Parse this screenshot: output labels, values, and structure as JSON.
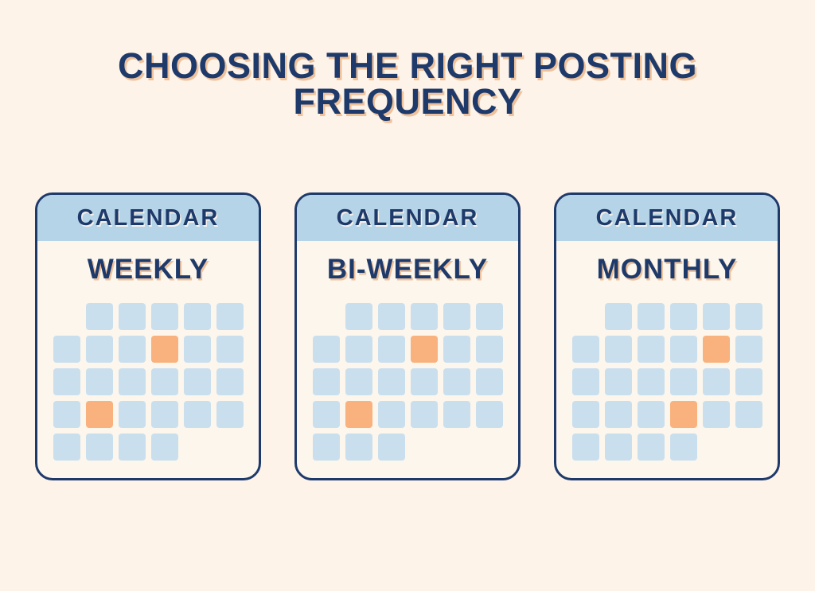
{
  "title": "CHOOSING THE RIGHT POSTING FREQUENCY",
  "colors": {
    "page_bg": "#fdf3e9",
    "card_bg": "#fcf6ec",
    "navy": "#1e3a6b",
    "header_blue": "#b5d4e8",
    "cell_blue": "#cadfee",
    "highlight_orange": "#f9b27d",
    "title_shadow": "#efc29c"
  },
  "cards": [
    {
      "header": "CALENDAR",
      "label": "WEEKLY",
      "grid": [
        [
          "empty",
          "blue",
          "blue",
          "blue",
          "blue",
          "blue"
        ],
        [
          "blue",
          "blue",
          "blue",
          "orange",
          "blue",
          "blue"
        ],
        [
          "blue",
          "blue",
          "blue",
          "blue",
          "blue",
          "blue"
        ],
        [
          "blue",
          "orange",
          "blue",
          "blue",
          "blue",
          "blue"
        ],
        [
          "blue",
          "blue",
          "blue",
          "blue",
          "empty",
          "empty"
        ]
      ]
    },
    {
      "header": "CALENDAR",
      "label": "BI-WEEKLY",
      "grid": [
        [
          "empty",
          "blue",
          "blue",
          "blue",
          "blue",
          "blue"
        ],
        [
          "blue",
          "blue",
          "blue",
          "orange",
          "blue",
          "blue"
        ],
        [
          "blue",
          "blue",
          "blue",
          "blue",
          "blue",
          "blue"
        ],
        [
          "blue",
          "orange",
          "blue",
          "blue",
          "blue",
          "blue"
        ],
        [
          "blue",
          "blue",
          "blue",
          "empty",
          "empty",
          "empty"
        ]
      ]
    },
    {
      "header": "CALENDAR",
      "label": "MONTHLY",
      "grid": [
        [
          "empty",
          "blue",
          "blue",
          "blue",
          "blue",
          "blue"
        ],
        [
          "blue",
          "blue",
          "blue",
          "blue",
          "orange",
          "blue"
        ],
        [
          "blue",
          "blue",
          "blue",
          "blue",
          "blue",
          "blue"
        ],
        [
          "blue",
          "blue",
          "blue",
          "orange",
          "blue",
          "blue"
        ],
        [
          "blue",
          "blue",
          "blue",
          "blue",
          "empty",
          "empty"
        ]
      ]
    }
  ]
}
